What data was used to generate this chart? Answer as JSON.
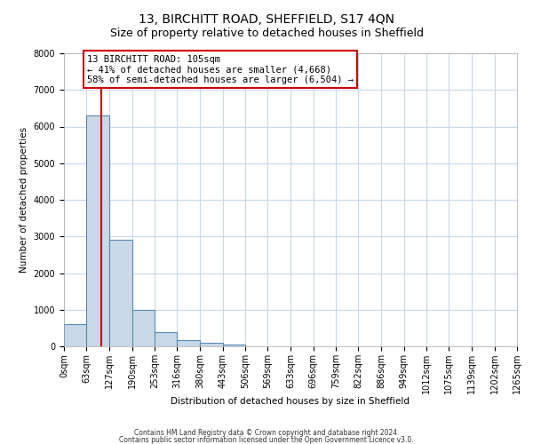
{
  "title": "13, BIRCHITT ROAD, SHEFFIELD, S17 4QN",
  "subtitle": "Size of property relative to detached houses in Sheffield",
  "xlabel": "Distribution of detached houses by size in Sheffield",
  "ylabel": "Number of detached properties",
  "bin_edges": [
    0,
    63,
    127,
    190,
    253,
    316,
    380,
    443,
    506,
    569,
    633,
    696,
    759,
    822,
    886,
    949,
    1012,
    1075,
    1139,
    1202,
    1265
  ],
  "bar_heights": [
    600,
    6300,
    2900,
    1000,
    380,
    170,
    100,
    60,
    0,
    0,
    0,
    0,
    0,
    0,
    0,
    0,
    0,
    0,
    0,
    0
  ],
  "bar_color": "#c9d9e8",
  "bar_edge_color": "#5a8ab0",
  "property_size": 105,
  "annotation_line1": "13 BIRCHITT ROAD: 105sqm",
  "annotation_line2": "← 41% of detached houses are smaller (4,668)",
  "annotation_line3": "58% of semi-detached houses are larger (6,504) →",
  "annotation_box_color": "#ffffff",
  "annotation_box_edge_color": "#cc0000",
  "red_line_color": "#cc0000",
  "ylim": [
    0,
    8000
  ],
  "yticks": [
    0,
    1000,
    2000,
    3000,
    4000,
    5000,
    6000,
    7000,
    8000
  ],
  "background_color": "#ffffff",
  "grid_color": "#c8d8e8",
  "footer_line1": "Contains HM Land Registry data © Crown copyright and database right 2024.",
  "footer_line2": "Contains public sector information licensed under the Open Government Licence v3.0.",
  "title_fontsize": 10,
  "subtitle_fontsize": 9,
  "annotation_fontsize": 7.5,
  "tick_fontsize": 7,
  "axis_label_fontsize": 7.5,
  "footer_fontsize": 5.5
}
